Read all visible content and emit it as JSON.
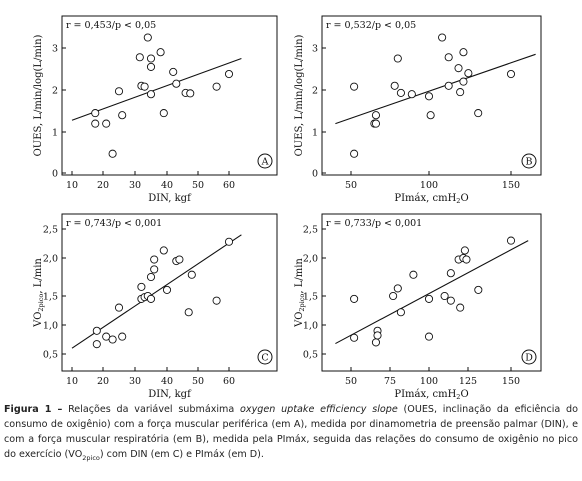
{
  "chart_data": [
    {
      "type": "scatter",
      "panel_label": "A",
      "annotation": "r = 0,453/p < 0,05",
      "xlabel": "DIN, kgf",
      "ylabel": "OUES, L/min/log(L/min)",
      "xlim": [
        10,
        65
      ],
      "ylim": [
        0,
        3.5
      ],
      "xticks": [
        "10",
        "20",
        "30",
        "40",
        "50",
        "60"
      ],
      "yticks": [
        "0",
        "1",
        "2",
        "3"
      ],
      "points": [
        [
          17.5,
          1.45
        ],
        [
          17.5,
          1.2
        ],
        [
          21,
          1.2
        ],
        [
          23,
          0.47
        ],
        [
          25,
          1.97
        ],
        [
          26,
          1.4
        ],
        [
          31.5,
          2.78
        ],
        [
          32,
          2.1
        ],
        [
          33,
          2.08
        ],
        [
          34,
          3.25
        ],
        [
          35,
          2.75
        ],
        [
          35,
          2.55
        ],
        [
          35,
          1.9
        ],
        [
          38,
          2.9
        ],
        [
          39,
          1.45
        ],
        [
          42,
          2.43
        ],
        [
          43,
          2.15
        ],
        [
          46,
          1.93
        ],
        [
          47.5,
          1.92
        ],
        [
          56,
          2.08
        ],
        [
          60,
          2.38
        ]
      ],
      "fit": [
        [
          10,
          1.28
        ],
        [
          64,
          2.75
        ]
      ]
    },
    {
      "type": "scatter",
      "panel_label": "B",
      "annotation": "r = 0,532/p < 0,05",
      "xlabel": "PImáx, cmH₂O",
      "ylabel": "OUES, L/min/log(L/min)",
      "xlim": [
        40,
        165
      ],
      "ylim": [
        0,
        3.5
      ],
      "xticks": [
        "50",
        "100",
        "150"
      ],
      "yticks": [
        "0",
        "1",
        "2",
        "3"
      ],
      "points": [
        [
          52,
          2.08
        ],
        [
          52,
          0.47
        ],
        [
          65,
          1.2
        ],
        [
          66,
          1.2
        ],
        [
          66,
          1.4
        ],
        [
          78,
          2.1
        ],
        [
          80,
          2.75
        ],
        [
          82,
          1.93
        ],
        [
          89,
          1.9
        ],
        [
          100,
          1.85
        ],
        [
          101,
          1.4
        ],
        [
          108,
          3.25
        ],
        [
          112,
          2.78
        ],
        [
          112,
          2.1
        ],
        [
          118,
          2.52
        ],
        [
          119,
          1.95
        ],
        [
          121,
          2.9
        ],
        [
          121,
          2.2
        ],
        [
          124,
          2.4
        ],
        [
          130,
          1.45
        ],
        [
          150,
          2.38
        ]
      ],
      "fit": [
        [
          40,
          1.2
        ],
        [
          165,
          2.85
        ]
      ]
    },
    {
      "type": "scatter",
      "panel_label": "C",
      "annotation": "r = 0,743/p < 0,001",
      "xlabel": "DIN, kgf",
      "ylabel": "VO2pico, L/min",
      "xlim": [
        10,
        65
      ],
      "ylim": [
        0.5,
        2.6
      ],
      "xticks": [
        "10",
        "20",
        "30",
        "40",
        "50",
        "60"
      ],
      "yticks": [
        "0,5",
        "1,0",
        "1,5",
        "2,0",
        "2,5"
      ],
      "points": [
        [
          18,
          0.9
        ],
        [
          18,
          0.67
        ],
        [
          21,
          0.8
        ],
        [
          23,
          0.75
        ],
        [
          25,
          1.3
        ],
        [
          26,
          0.8
        ],
        [
          32,
          1.45
        ],
        [
          32,
          1.62
        ],
        [
          33,
          1.48
        ],
        [
          34,
          1.5
        ],
        [
          35,
          1.75
        ],
        [
          35,
          1.45
        ],
        [
          36,
          1.98
        ],
        [
          36,
          1.85
        ],
        [
          39,
          2.13
        ],
        [
          40,
          1.58
        ],
        [
          43,
          1.96
        ],
        [
          44,
          1.98
        ],
        [
          47,
          1.22
        ],
        [
          48,
          1.78
        ],
        [
          56,
          1.42
        ],
        [
          60,
          2.28
        ]
      ],
      "fit": [
        [
          10,
          0.6
        ],
        [
          64,
          2.4
        ]
      ]
    },
    {
      "type": "scatter",
      "panel_label": "D",
      "annotation": "r = 0,733/p < 0,001",
      "xlabel": "PImáx, cmH₂O",
      "ylabel": "VO2pico, L/min",
      "xlim": [
        40,
        165
      ],
      "ylim": [
        0.5,
        2.6
      ],
      "xticks": [
        "50",
        "75",
        "100",
        "125",
        "150"
      ],
      "yticks": [
        "0,5",
        "1,0",
        "1,5",
        "2,0",
        "2,5"
      ],
      "points": [
        [
          52,
          1.45
        ],
        [
          52,
          0.78
        ],
        [
          66,
          0.7
        ],
        [
          67,
          0.9
        ],
        [
          67,
          0.82
        ],
        [
          77,
          1.5
        ],
        [
          80,
          1.6
        ],
        [
          82,
          1.22
        ],
        [
          90,
          1.78
        ],
        [
          100,
          1.45
        ],
        [
          100,
          0.8
        ],
        [
          110,
          1.5
        ],
        [
          114,
          1.42
        ],
        [
          114,
          1.8
        ],
        [
          119,
          1.98
        ],
        [
          120,
          1.3
        ],
        [
          122,
          2.0
        ],
        [
          123,
          2.13
        ],
        [
          124,
          1.98
        ],
        [
          131,
          1.58
        ],
        [
          150,
          2.3
        ]
      ],
      "fit": [
        [
          40,
          0.68
        ],
        [
          160,
          2.3
        ]
      ]
    }
  ],
  "caption": {
    "lead": "Figura 1 –",
    "p1": " Relações da variável submáxima ",
    "italic": "oxygen uptake efficiency slope",
    "p2": " (OUES, inclinação da eficiência do consumo de oxigênio) com a força muscular periférica (em A), medida por dinamometria de preensão palmar (DIN), e com a força muscular respiratória (em B), medida pela PImáx, seguida das relações do consumo de oxigênio no pico do exercício (VO",
    "sub": "2pico",
    "p3": ") com DIN (em C) e PImáx (em D)."
  }
}
